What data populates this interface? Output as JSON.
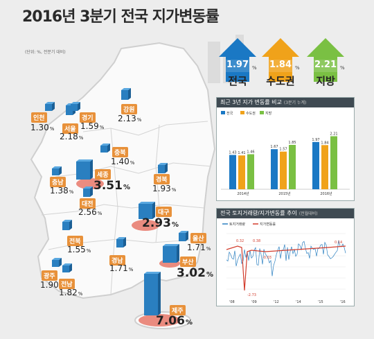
{
  "title": "2016년 3분기 전국 지가변동률",
  "subnote": "(단위: %, 전분기 대비)",
  "colors": {
    "nation": "#1a78c4",
    "capital": "#f0a21a",
    "local": "#7ac043",
    "label_bg": "#e8913a",
    "bar": "#2a7fc0",
    "base": "#e8786a"
  },
  "summary": [
    {
      "label": "전국",
      "value": "1.97",
      "color": "#1a78c4"
    },
    {
      "label": "수도권",
      "value": "1.84",
      "color": "#f0a21a"
    },
    {
      "label": "지방",
      "value": "2.21",
      "color": "#7ac043"
    }
  ],
  "pct_unit": "%",
  "regions": [
    {
      "name": "인천",
      "value": "1.30"
    },
    {
      "name": "서울",
      "value": "2.18"
    },
    {
      "name": "경기",
      "value": "1.59"
    },
    {
      "name": "강원",
      "value": "2.13"
    },
    {
      "name": "충북",
      "value": "1.40"
    },
    {
      "name": "세종",
      "value": "3.51"
    },
    {
      "name": "충남",
      "value": "1.38"
    },
    {
      "name": "경북",
      "value": "1.93"
    },
    {
      "name": "대전",
      "value": "2.56"
    },
    {
      "name": "대구",
      "value": "2.93"
    },
    {
      "name": "전북",
      "value": "1.55"
    },
    {
      "name": "울산",
      "value": "1.71"
    },
    {
      "name": "경남",
      "value": "1.71"
    },
    {
      "name": "부산",
      "value": "3.02"
    },
    {
      "name": "광주",
      "value": "1.90"
    },
    {
      "name": "전남",
      "value": "1.82"
    },
    {
      "name": "제주",
      "value": "7.06"
    }
  ],
  "chart_data": [
    {
      "type": "bar",
      "title": "최근 3년 지가 변동률 비교",
      "subtitle": "(3분기 누계)",
      "categories": [
        "2014년",
        "2015년",
        "2016년"
      ],
      "series": [
        {
          "name": "전국",
          "values": [
            1.43,
            1.67,
            1.97
          ]
        },
        {
          "name": "수도권",
          "values": [
            1.41,
            1.57,
            1.84
          ]
        },
        {
          "name": "지방",
          "values": [
            1.46,
            1.85,
            2.21
          ]
        }
      ],
      "legend_position": "top-left"
    },
    {
      "type": "line",
      "title": "전국 토지거래량/지가변동률 추이",
      "subtitle": "(전월대비)",
      "series": [
        {
          "name": "토지거래량"
        },
        {
          "name": "지가변동률"
        }
      ],
      "annotations": [
        "0.32",
        "0.38",
        "-0.03",
        "-2.73",
        "0.14"
      ],
      "x_tick_labels": [
        "'08",
        "'09",
        "'12",
        "'14",
        "'15",
        "'16"
      ]
    }
  ]
}
